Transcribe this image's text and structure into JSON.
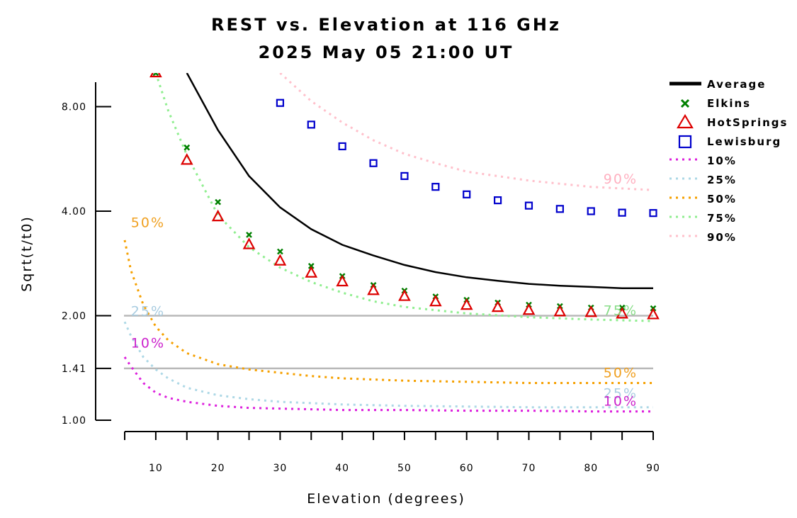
{
  "chart_data": {
    "type": "line",
    "title": "REST vs. Elevation at 116 GHz",
    "subtitle": "2025 May 05 21:00 UT",
    "xlabel": "Elevation (degrees)",
    "ylabel": "Sqrt(t/t0)",
    "y_scale": "log",
    "xlim": [
      5,
      90
    ],
    "ylim": [
      1.0,
      10.0
    ],
    "x_ticks": [
      10,
      20,
      30,
      40,
      50,
      60,
      70,
      80,
      90
    ],
    "x_tick_labels": [
      "10",
      "20",
      "30",
      "40",
      "50",
      "60",
      "70",
      "80",
      "90"
    ],
    "y_ticks": [
      1.0,
      1.41,
      2.0,
      4.0,
      8.0
    ],
    "y_tick_labels": [
      "1.00",
      "1.41",
      "2.00",
      "4.00",
      "8.00"
    ],
    "reference_lines": [
      1.41,
      2.0
    ],
    "legend_position": "right",
    "series": [
      {
        "name": "Average",
        "style": "line",
        "color": "#000000",
        "x": [
          15,
          20,
          25,
          30,
          35,
          40,
          45,
          50,
          55,
          60,
          65,
          70,
          75,
          80,
          85,
          90
        ],
        "y": [
          10.0,
          6.85,
          5.05,
          4.1,
          3.55,
          3.2,
          2.98,
          2.8,
          2.67,
          2.58,
          2.52,
          2.47,
          2.44,
          2.42,
          2.4,
          2.4
        ]
      },
      {
        "name": "Elkins",
        "style": "x-marker",
        "color": "#008000",
        "x": [
          10,
          15,
          20,
          25,
          30,
          35,
          40,
          45,
          50,
          55,
          60,
          65,
          70,
          75,
          80,
          85,
          90
        ],
        "y": [
          10.0,
          6.1,
          4.25,
          3.42,
          3.06,
          2.78,
          2.6,
          2.45,
          2.36,
          2.27,
          2.22,
          2.18,
          2.15,
          2.13,
          2.11,
          2.11,
          2.1
        ]
      },
      {
        "name": "HotSprings",
        "style": "triangle-marker",
        "color": "#dd0000",
        "x": [
          10,
          15,
          20,
          25,
          30,
          35,
          40,
          45,
          50,
          55,
          60,
          65,
          70,
          75,
          80,
          85,
          90
        ],
        "y": [
          10.0,
          5.6,
          3.85,
          3.2,
          2.87,
          2.65,
          2.5,
          2.36,
          2.27,
          2.19,
          2.14,
          2.11,
          2.07,
          2.05,
          2.04,
          2.02,
          2.01
        ]
      },
      {
        "name": "Lewisburg",
        "style": "square-marker",
        "color": "#0000cc",
        "x": [
          30,
          35,
          40,
          45,
          50,
          55,
          60,
          65,
          70,
          75,
          80,
          85,
          90
        ],
        "y": [
          8.2,
          7.1,
          6.15,
          5.5,
          5.05,
          4.7,
          4.47,
          4.3,
          4.15,
          4.06,
          4.0,
          3.96,
          3.95
        ]
      },
      {
        "name": "10%",
        "style": "dotted",
        "color": "#dd22dd",
        "label_color": "#cc22cc",
        "x": [
          5,
          6,
          8,
          10,
          12,
          15,
          20,
          25,
          30,
          35,
          40,
          50,
          60,
          70,
          80,
          90
        ],
        "y": [
          1.52,
          1.43,
          1.28,
          1.2,
          1.16,
          1.13,
          1.1,
          1.085,
          1.08,
          1.075,
          1.07,
          1.07,
          1.065,
          1.065,
          1.06,
          1.06
        ]
      },
      {
        "name": "25%",
        "style": "dotted",
        "color": "#add8e6",
        "label_color": "#a8cce0",
        "x": [
          5,
          6,
          8,
          10,
          12,
          15,
          20,
          25,
          30,
          35,
          40,
          50,
          60,
          70,
          80,
          90
        ],
        "y": [
          1.92,
          1.75,
          1.52,
          1.4,
          1.32,
          1.24,
          1.18,
          1.15,
          1.13,
          1.12,
          1.11,
          1.1,
          1.095,
          1.09,
          1.09,
          1.09
        ]
      },
      {
        "name": "50%",
        "style": "dotted",
        "color": "#f5a000",
        "label_color": "#f0a020",
        "x": [
          5,
          6,
          8,
          10,
          12,
          15,
          20,
          25,
          30,
          35,
          40,
          50,
          60,
          70,
          80,
          90
        ],
        "y": [
          3.3,
          2.7,
          2.15,
          1.86,
          1.7,
          1.56,
          1.45,
          1.4,
          1.37,
          1.34,
          1.32,
          1.3,
          1.29,
          1.28,
          1.28,
          1.28
        ]
      },
      {
        "name": "75%",
        "style": "dotted",
        "color": "#90ee90",
        "label_color": "#88dd88",
        "x": [
          10,
          12,
          15,
          20,
          25,
          30,
          35,
          40,
          45,
          50,
          60,
          70,
          80,
          90
        ],
        "y": [
          10.0,
          7.8,
          5.8,
          3.9,
          3.15,
          2.75,
          2.5,
          2.33,
          2.2,
          2.12,
          2.03,
          1.98,
          1.95,
          1.93
        ]
      },
      {
        "name": "90%",
        "style": "dotted",
        "color": "#ffc0cb",
        "label_color": "#ffb0c0",
        "x": [
          30,
          35,
          40,
          45,
          50,
          55,
          60,
          70,
          80,
          90
        ],
        "y": [
          10.0,
          8.3,
          7.2,
          6.4,
          5.85,
          5.5,
          5.2,
          4.9,
          4.7,
          4.6
        ]
      }
    ],
    "curve_labels": [
      {
        "text": "50%",
        "series": "50%",
        "x": 6,
        "y": 3.6
      },
      {
        "text": "25%",
        "series": "25%",
        "x": 6,
        "y": 2.0
      },
      {
        "text": "10%",
        "series": "10%",
        "x": 6,
        "y": 1.62
      },
      {
        "text": "90%",
        "series": "90%",
        "x": 82,
        "y": 4.8
      },
      {
        "text": "75%",
        "series": "75%",
        "x": 82,
        "y": 2.01
      },
      {
        "text": "50%",
        "series": "50%",
        "x": 82,
        "y": 1.33
      },
      {
        "text": "25%",
        "series": "25%",
        "x": 82,
        "y": 1.16
      },
      {
        "text": "10%",
        "series": "10%",
        "x": 82,
        "y": 1.1
      }
    ]
  }
}
